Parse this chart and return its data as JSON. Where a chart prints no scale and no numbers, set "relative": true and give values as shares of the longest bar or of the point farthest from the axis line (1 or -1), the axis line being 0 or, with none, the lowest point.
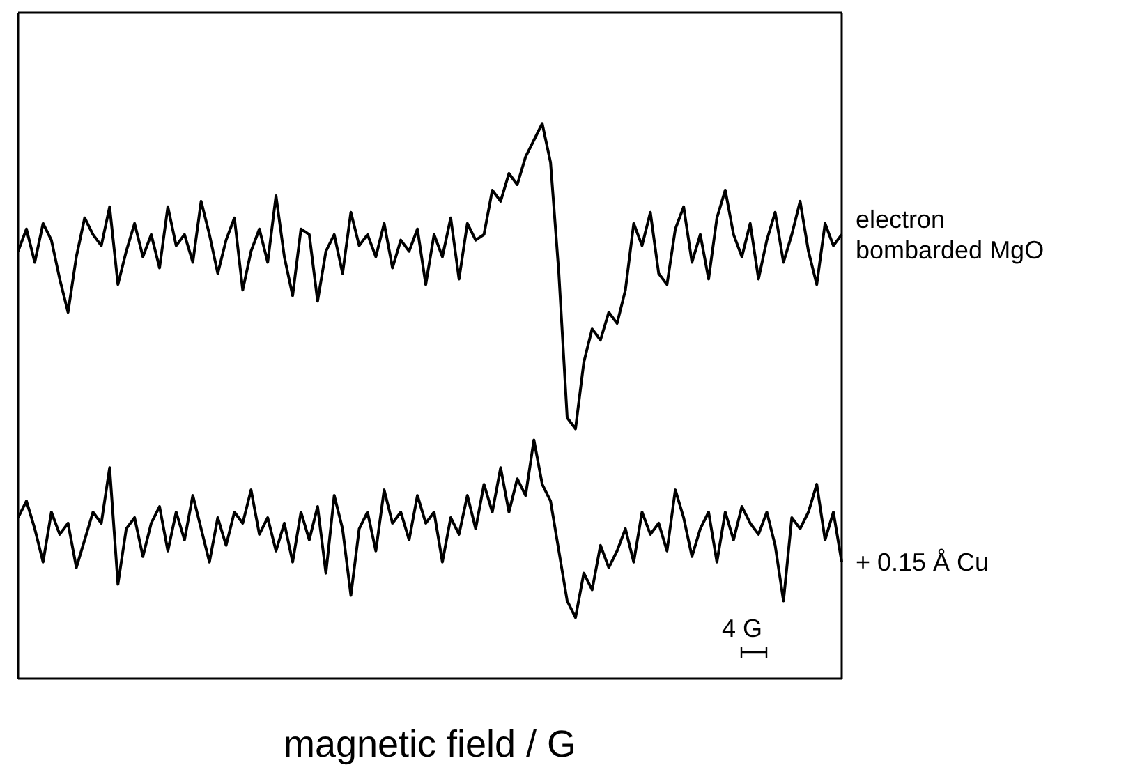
{
  "chart_data": {
    "type": "line",
    "relative": true,
    "xlabel": "magnetic field / G",
    "tick_labels": false,
    "categories": [
      null,
      null,
      null,
      null,
      null,
      null,
      null,
      null,
      null,
      null,
      null,
      null,
      null,
      null,
      null,
      null,
      null,
      null,
      null,
      null,
      null,
      null,
      null,
      null,
      null,
      null,
      null,
      null,
      null,
      null,
      null,
      null,
      null,
      null,
      null,
      null,
      null,
      null,
      null,
      null,
      null,
      null,
      null,
      null,
      null,
      null,
      null,
      null,
      null,
      null,
      null,
      null,
      null,
      null,
      null,
      null,
      null,
      null,
      null,
      null,
      null,
      null,
      null,
      null,
      null,
      null,
      null,
      null,
      null,
      null,
      null,
      null,
      null,
      null,
      null,
      null,
      null,
      null,
      null,
      null,
      null,
      null,
      null,
      null,
      null,
      null,
      null,
      null,
      null,
      null,
      null,
      null,
      null,
      null,
      null,
      null,
      null,
      null,
      null,
      null
    ],
    "series": [
      {
        "name": "electron bombarded MgO",
        "color": "#000000",
        "values": [
          0.77,
          0.81,
          0.75,
          0.82,
          0.79,
          0.72,
          0.66,
          0.76,
          0.83,
          0.8,
          0.78,
          0.85,
          0.71,
          0.77,
          0.82,
          0.76,
          0.8,
          0.74,
          0.85,
          0.78,
          0.8,
          0.75,
          0.86,
          0.8,
          0.73,
          0.79,
          0.83,
          0.7,
          0.77,
          0.81,
          0.75,
          0.87,
          0.76,
          0.69,
          0.81,
          0.8,
          0.68,
          0.77,
          0.8,
          0.73,
          0.84,
          0.78,
          0.8,
          0.76,
          0.82,
          0.74,
          0.79,
          0.77,
          0.81,
          0.71,
          0.8,
          0.76,
          0.83,
          0.72,
          0.82,
          0.79,
          0.8,
          0.88,
          0.86,
          0.91,
          0.89,
          0.94,
          0.97,
          1.0,
          0.93,
          0.73,
          0.47,
          0.45,
          0.57,
          0.63,
          0.61,
          0.66,
          0.64,
          0.7,
          0.82,
          0.78,
          0.84,
          0.73,
          0.71,
          0.81,
          0.85,
          0.75,
          0.8,
          0.72,
          0.83,
          0.88,
          0.8,
          0.76,
          0.82,
          0.72,
          0.79,
          0.84,
          0.75,
          0.8,
          0.86,
          0.77,
          0.71,
          0.82,
          0.78,
          0.8
        ]
      },
      {
        "name": "+ 0.15 Å Cu",
        "color": "#000000",
        "values": [
          0.29,
          0.32,
          0.27,
          0.21,
          0.3,
          0.26,
          0.28,
          0.2,
          0.25,
          0.3,
          0.28,
          0.38,
          0.17,
          0.27,
          0.29,
          0.22,
          0.28,
          0.31,
          0.23,
          0.3,
          0.25,
          0.33,
          0.27,
          0.21,
          0.29,
          0.24,
          0.3,
          0.28,
          0.34,
          0.26,
          0.29,
          0.23,
          0.28,
          0.21,
          0.3,
          0.25,
          0.31,
          0.19,
          0.33,
          0.27,
          0.15,
          0.27,
          0.3,
          0.23,
          0.34,
          0.28,
          0.3,
          0.25,
          0.33,
          0.28,
          0.3,
          0.21,
          0.29,
          0.26,
          0.33,
          0.27,
          0.35,
          0.3,
          0.38,
          0.3,
          0.36,
          0.33,
          0.43,
          0.35,
          0.32,
          0.23,
          0.14,
          0.11,
          0.19,
          0.16,
          0.24,
          0.2,
          0.23,
          0.27,
          0.21,
          0.3,
          0.26,
          0.28,
          0.23,
          0.34,
          0.29,
          0.22,
          0.27,
          0.3,
          0.21,
          0.3,
          0.25,
          0.31,
          0.28,
          0.26,
          0.3,
          0.24,
          0.14,
          0.29,
          0.27,
          0.3,
          0.35,
          0.25,
          0.3,
          0.21
        ]
      }
    ],
    "annotations": [
      "4 G"
    ]
  }
}
